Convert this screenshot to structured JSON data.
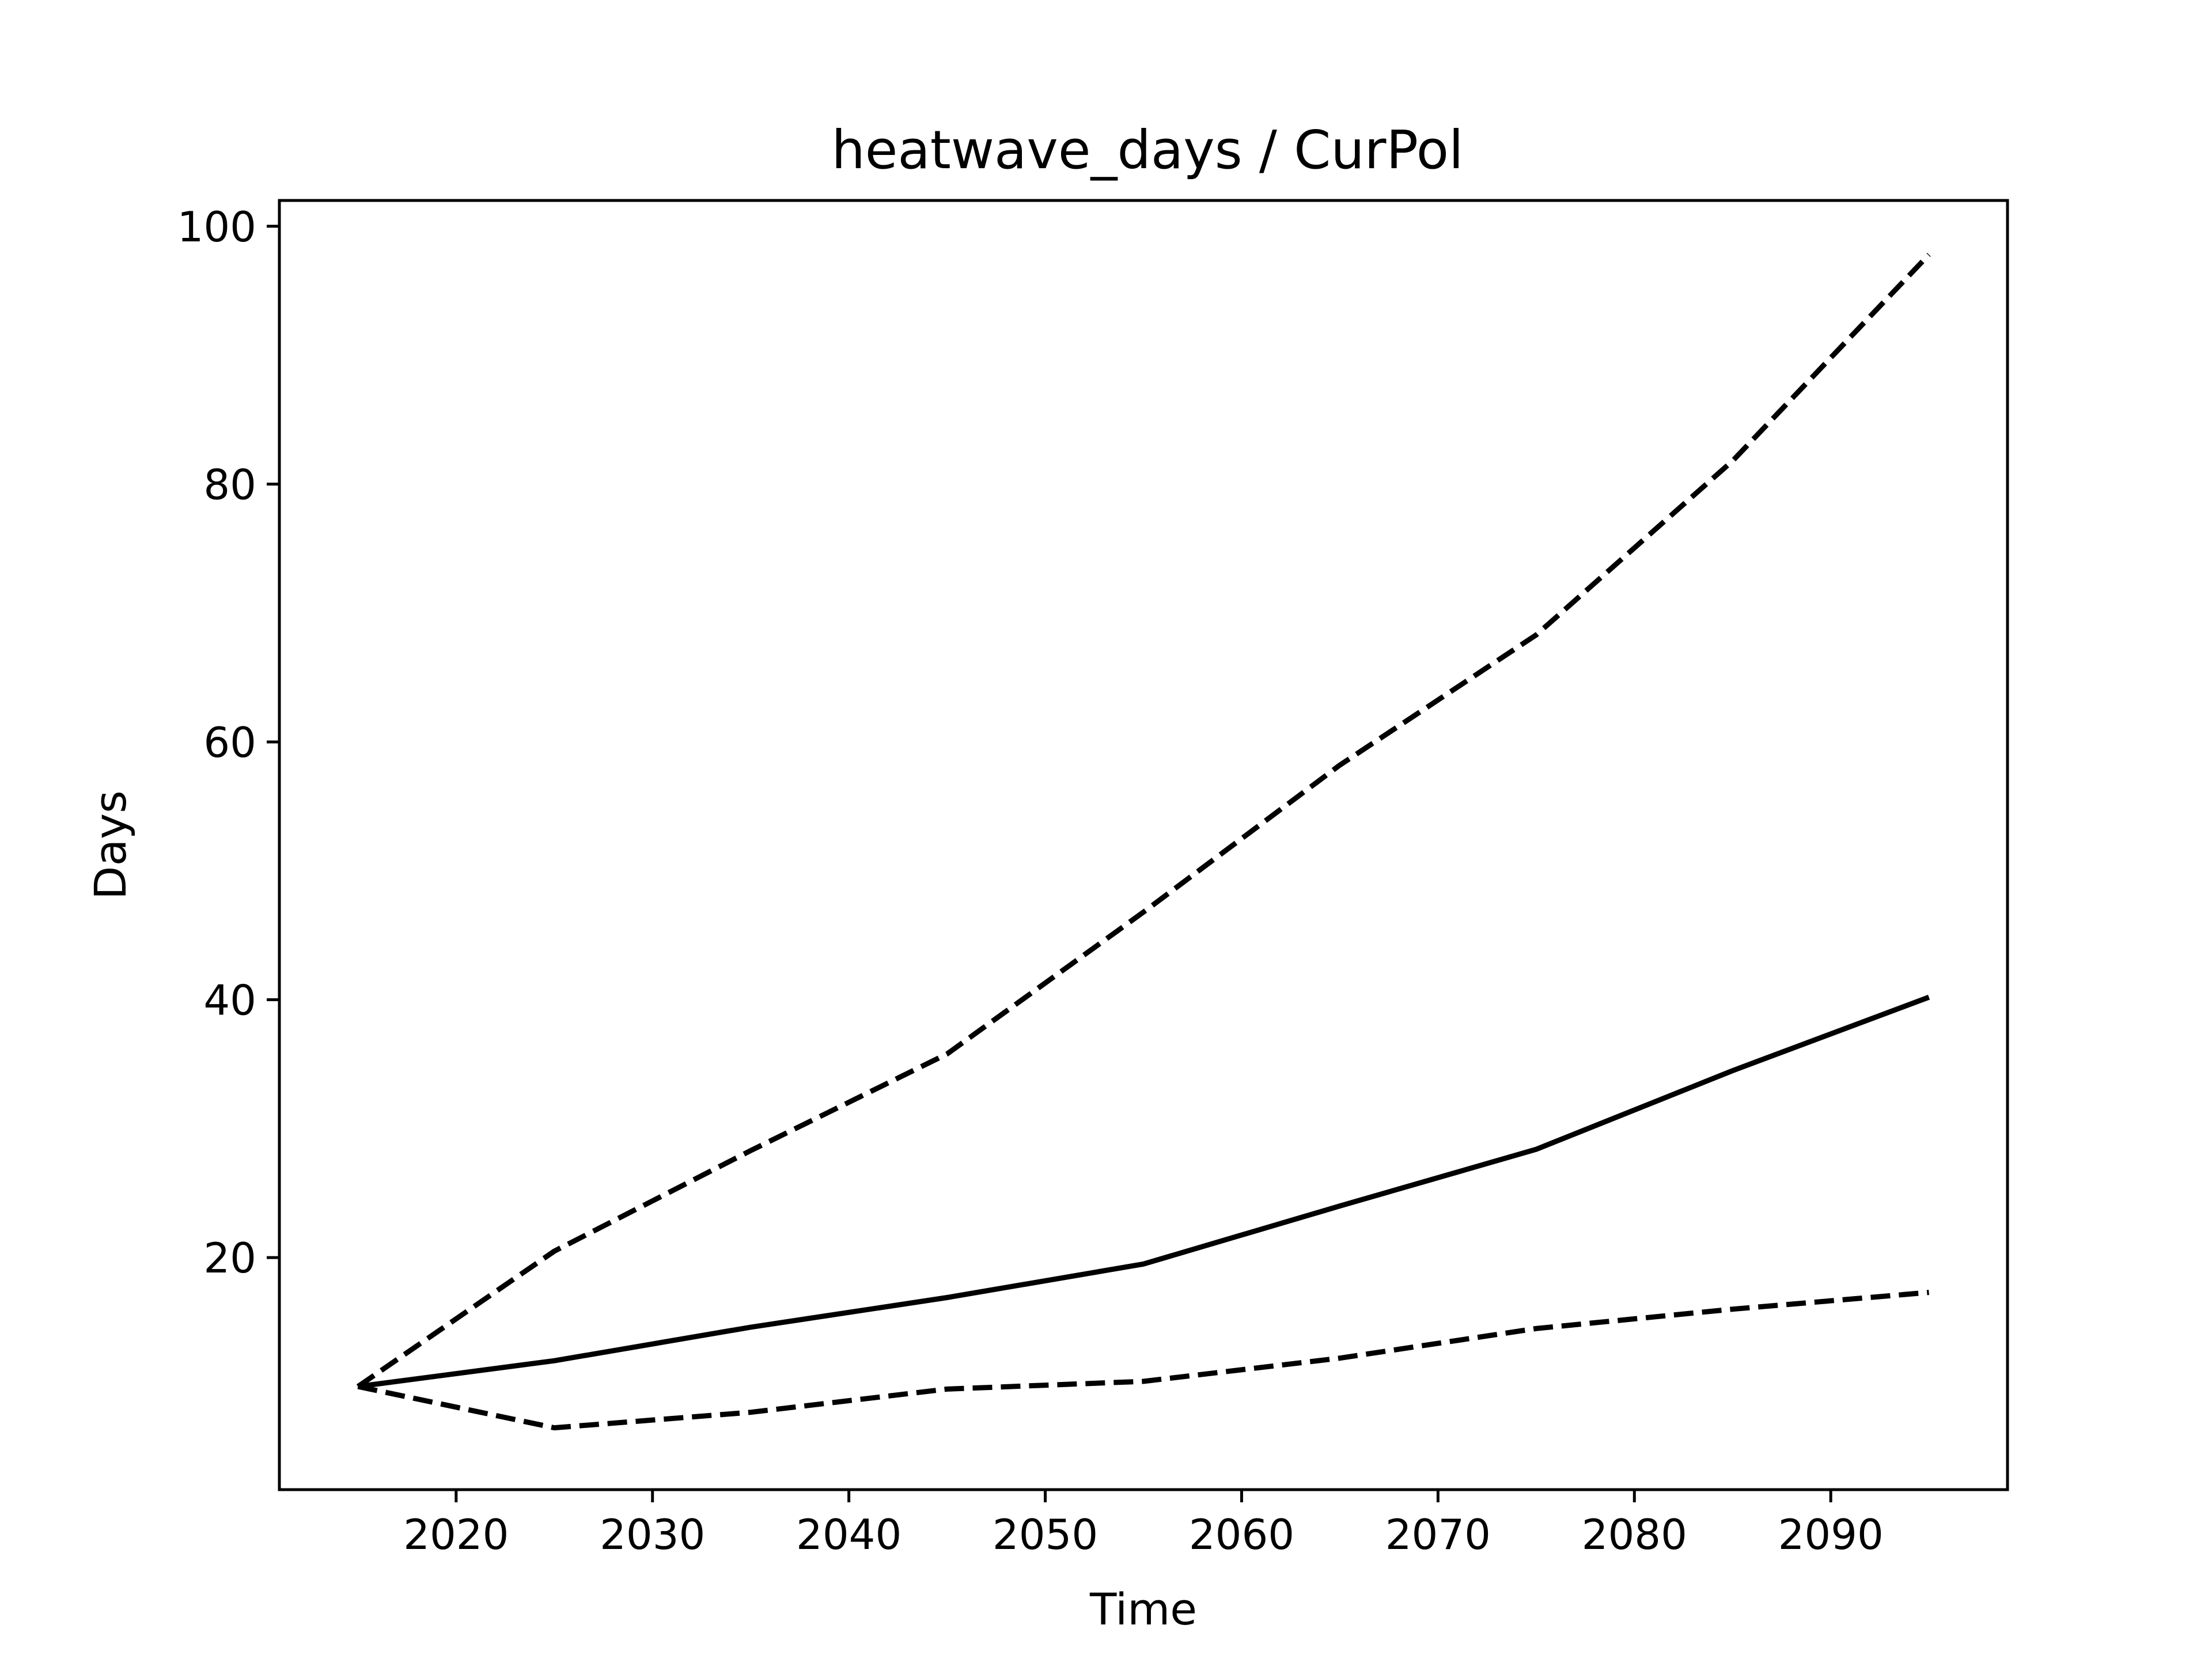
{
  "chart_data": {
    "type": "line",
    "title": "heatwave_days / CurPol",
    "xlabel": "Time",
    "ylabel": "Days",
    "xlim": [
      2011,
      2099
    ],
    "ylim": [
      2,
      102
    ],
    "xticks": [
      "2020",
      "2030",
      "2040",
      "2050",
      "2060",
      "2070",
      "2080",
      "2090"
    ],
    "yticks": [
      "20",
      "40",
      "60",
      "80",
      "100"
    ],
    "grid": false,
    "line_color": "#000000",
    "x": [
      2015,
      2025,
      2035,
      2045,
      2055,
      2065,
      2075,
      2085,
      2095
    ],
    "series": [
      {
        "style": "dashed",
        "values": [
          10.0,
          20.5,
          28.3,
          35.8,
          46.8,
          58.2,
          68.3,
          81.8,
          97.8
        ]
      },
      {
        "style": "solid",
        "values": [
          10.0,
          12.0,
          14.6,
          16.9,
          19.5,
          24.0,
          28.4,
          34.5,
          40.2
        ]
      },
      {
        "style": "dashed",
        "values": [
          10.0,
          6.8,
          8.0,
          9.8,
          10.4,
          12.2,
          14.5,
          16.0,
          17.3
        ]
      }
    ]
  }
}
